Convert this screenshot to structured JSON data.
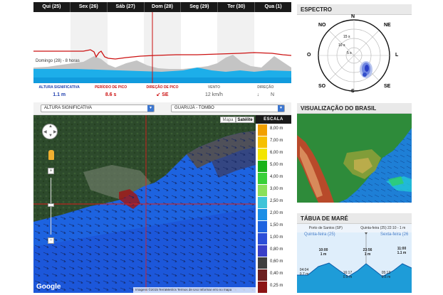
{
  "forecast": {
    "days": [
      "Qui (25)",
      "Sex (26)",
      "Sáb (27)",
      "Dom (28)",
      "Seg (29)",
      "Ter (30)",
      "Qua (1)"
    ],
    "caption": "Domingo (28) - 8 horas",
    "stats": {
      "labels": [
        "ALTURA SIGNIFICATIVA",
        "PERÍODO DE PICO",
        "DIREÇÃO DE PICO",
        "VENTO",
        "DIREÇÃO"
      ],
      "height": "1.1 m",
      "period": "8.6 s",
      "direction_arrow": "↙",
      "direction": "SE",
      "wind": "12 km/h",
      "wind_arrow": "↓",
      "wind_direction": "N"
    },
    "colors": {
      "height": "#1f3fae",
      "period": "#cc1111",
      "direction": "#cc1111"
    }
  },
  "spectrum": {
    "title": "ESPECTRO",
    "compass": {
      "n": "N",
      "s": "S",
      "e": "L",
      "w": "O",
      "ne": "NE",
      "no": "NO",
      "se": "SE",
      "so": "SO"
    },
    "rings": [
      "15 s",
      "10 s",
      "5 s"
    ]
  },
  "controls": {
    "variable": "ALTURA SIGNIFICATIVA",
    "location": "GUARUJÁ - TOMBO",
    "map_type": "Mapa",
    "satellite_type": "Satélite"
  },
  "map": {
    "google": "Google",
    "attribution": "Imagens ©2015 TerraMetrics   Termos de Uso   Informar erro no mapa",
    "zoom_in": "+",
    "zoom_out": "−"
  },
  "scale": {
    "title": "ESCALA",
    "items": [
      {
        "label": "8,00 m",
        "color": "#f2a000"
      },
      {
        "label": "7,00 m",
        "color": "#f6c000"
      },
      {
        "label": "6,00 m",
        "color": "#f3e500"
      },
      {
        "label": "5,00 m",
        "color": "#19b219"
      },
      {
        "label": "4,00 m",
        "color": "#38d038"
      },
      {
        "label": "3,00 m",
        "color": "#8ae05a"
      },
      {
        "label": "2,50 m",
        "color": "#3fc4d8"
      },
      {
        "label": "2,00 m",
        "color": "#1b8ee6"
      },
      {
        "label": "1,50 m",
        "color": "#1d63e0"
      },
      {
        "label": "1,00 m",
        "color": "#2b4ed8"
      },
      {
        "label": "0,80 m",
        "color": "#3a3fc8"
      },
      {
        "label": "0,60 m",
        "color": "#3f3f3f"
      },
      {
        "label": "0,40 m",
        "color": "#6b1f1f"
      },
      {
        "label": "0,25 m",
        "color": "#8c1414"
      }
    ]
  },
  "brazil": {
    "title": "VISUALIZAÇÃO DO BRASIL"
  },
  "tide": {
    "title": "TÁBUA DE MARÉ",
    "port": "Porto de Santos (SP)",
    "date": "Quinta-feira (25) 22:10 - 1 m",
    "day1": "Quinta-feira (25)",
    "day2": "Sexta-feira (26",
    "points": [
      {
        "time": "10:00",
        "height": "1 m"
      },
      {
        "time": "23:56",
        "height": "1 m"
      },
      {
        "time": "11:00",
        "height": "1.1 m"
      },
      {
        "time": "04:04",
        "height": "0.7 m"
      },
      {
        "time": "16:17",
        "height": "0.5 m"
      },
      {
        "time": "05:13",
        "height": "0.6 m"
      }
    ]
  }
}
